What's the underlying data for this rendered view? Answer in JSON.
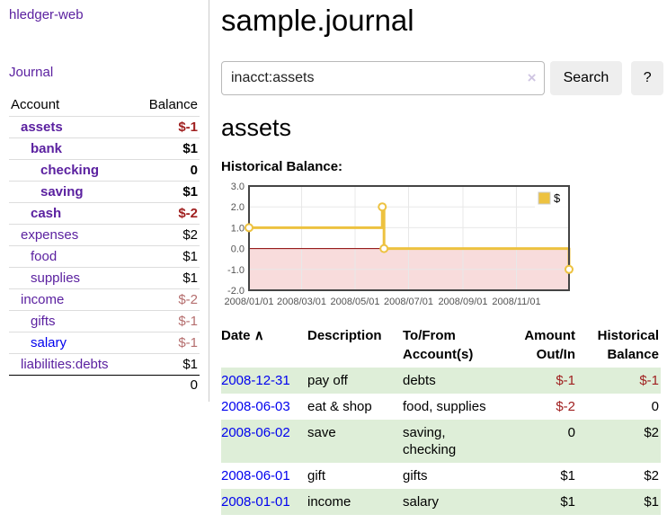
{
  "colors": {
    "link-purple": "#5b21a0",
    "link-blue": "#0000ee",
    "neg-strong": "#a02020",
    "neg-faded": "#b56e6e",
    "stripe-green": "#deeed8",
    "btn-bg": "#eeeeee",
    "clear-icon": "#cfc5e2"
  },
  "sidebar": {
    "brand": "hledger-web",
    "nav_journal": "Journal",
    "header": {
      "account": "Account",
      "balance": "Balance"
    },
    "rows": [
      {
        "name": "assets",
        "balance": "$-1",
        "indent": 1,
        "bold": true,
        "neg": "strong"
      },
      {
        "name": "bank",
        "balance": "$1",
        "indent": 2,
        "bold": true
      },
      {
        "name": "checking",
        "balance": "0",
        "indent": 3,
        "bold": true
      },
      {
        "name": "saving",
        "balance": "$1",
        "indent": 3,
        "bold": true
      },
      {
        "name": "cash",
        "balance": "$-2",
        "indent": 2,
        "bold": true,
        "neg": "strong"
      },
      {
        "name": "expenses",
        "balance": "$2",
        "indent": 1
      },
      {
        "name": "food",
        "balance": "$1",
        "indent": 2
      },
      {
        "name": "supplies",
        "balance": "$1",
        "indent": 2
      },
      {
        "name": "income",
        "balance": "$-2",
        "indent": 1,
        "neg": "faded"
      },
      {
        "name": "gifts",
        "balance": "$-1",
        "indent": 2,
        "neg": "faded"
      },
      {
        "name": "salary",
        "balance": "$-1",
        "indent": 2,
        "neg": "faded",
        "link": "blue"
      },
      {
        "name": "liabilities:debts",
        "balance": "$1",
        "indent": 1
      }
    ],
    "total": "0"
  },
  "main": {
    "title": "sample.journal",
    "search": {
      "value": "inacct:assets",
      "clear_icon": "×",
      "button_label": "Search",
      "help_label": "?"
    },
    "heading": "assets",
    "chart_label": "Historical Balance:"
  },
  "chart_data": {
    "type": "line-step",
    "title": "Historical Balance",
    "ylim": [
      -2,
      3
    ],
    "xlim_days": [
      0,
      365
    ],
    "grid": true,
    "legend_position": "top-right",
    "yticks": [
      {
        "label": "3.0",
        "value": 3
      },
      {
        "label": "2.0",
        "value": 2
      },
      {
        "label": "1.0",
        "value": 1
      },
      {
        "label": "0.0",
        "value": 0
      },
      {
        "label": "-1.0",
        "value": -1
      },
      {
        "label": "-2.0",
        "value": -2
      }
    ],
    "xticks": [
      {
        "label": "2008/01/01",
        "day": 0
      },
      {
        "label": "2008/03/01",
        "day": 60
      },
      {
        "label": "2008/05/01",
        "day": 121
      },
      {
        "label": "2008/07/01",
        "day": 182
      },
      {
        "label": "2008/09/01",
        "day": 244
      },
      {
        "label": "2008/11/01",
        "day": 305
      }
    ],
    "series": [
      {
        "name": "$",
        "color": "#edc240",
        "points": [
          {
            "x": "2008-01-01",
            "day": 0,
            "value": 1
          },
          {
            "x": "2008-06-01",
            "day": 152,
            "value": 2
          },
          {
            "x": "2008-06-03",
            "day": 154,
            "value": 0
          },
          {
            "x": "2008-12-31",
            "day": 365,
            "value": -1
          }
        ]
      }
    ],
    "negative_fill": "#f8dcdc",
    "zero_line_color": "#8b0000",
    "grid_color": "#e8e8e8",
    "border_color": "#444444",
    "axis_text_color": "#545454"
  },
  "table": {
    "sort_icon": "∧",
    "headers": [
      {
        "lines": [
          "Date"
        ]
      },
      {
        "lines": [
          "Description"
        ]
      },
      {
        "lines": [
          "To/From",
          "Account(s)"
        ]
      },
      {
        "lines": [
          "Amount",
          "Out/In"
        ]
      },
      {
        "lines": [
          "Historical",
          "Balance"
        ]
      }
    ],
    "rows": [
      {
        "date": "2008-12-31",
        "description": "pay off",
        "accounts": [
          "debts"
        ],
        "amount": "$-1",
        "balance": "$-1"
      },
      {
        "date": "2008-06-03",
        "description": "eat & shop",
        "accounts": [
          "food, supplies"
        ],
        "amount": "$-2",
        "balance": "0"
      },
      {
        "date": "2008-06-02",
        "description": "save",
        "accounts": [
          "saving,",
          "checking"
        ],
        "amount": "0",
        "balance": "$2"
      },
      {
        "date": "2008-06-01",
        "description": "gift",
        "accounts": [
          "gifts"
        ],
        "amount": "$1",
        "balance": "$2"
      },
      {
        "date": "2008-01-01",
        "description": "income",
        "accounts": [
          "salary"
        ],
        "amount": "$1",
        "balance": "$1"
      }
    ]
  }
}
